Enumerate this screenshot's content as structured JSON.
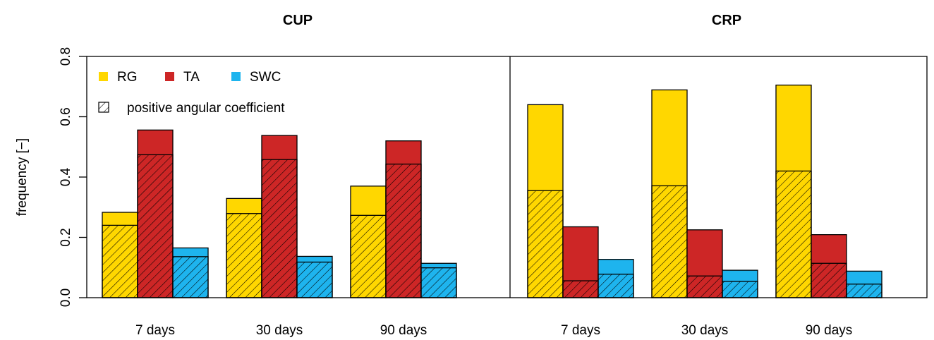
{
  "chart_data": {
    "type": "bar",
    "stacked": true,
    "ylabel": "frequency [−]",
    "ylim": [
      0,
      0.8
    ],
    "yticks": [
      "0.0",
      "0.2",
      "0.4",
      "0.6",
      "0.8"
    ],
    "legend": {
      "placement": "top-left",
      "entries": [
        {
          "label": "RG",
          "color": "#FFD700"
        },
        {
          "label": "TA",
          "color": "#CD2626"
        },
        {
          "label": "SWC",
          "color": "#1EB4EE"
        }
      ],
      "hatch_label": "positive angular coefficient"
    },
    "panels": [
      {
        "title": "CUP",
        "categories": [
          "7 days",
          "30 days",
          "90 days"
        ],
        "series": [
          {
            "name": "RG",
            "color": "#FFD700",
            "total": [
              0.283,
              0.329,
              0.37
            ],
            "positive": [
              0.24,
              0.279,
              0.273
            ]
          },
          {
            "name": "TA",
            "color": "#CD2626",
            "total": [
              0.556,
              0.538,
              0.52
            ],
            "positive": [
              0.474,
              0.458,
              0.443
            ]
          },
          {
            "name": "SWC",
            "color": "#1EB4EE",
            "total": [
              0.165,
              0.137,
              0.114
            ],
            "positive": [
              0.136,
              0.118,
              0.099
            ]
          }
        ]
      },
      {
        "title": "CRP",
        "categories": [
          "7 days",
          "30 days",
          "90 days"
        ],
        "series": [
          {
            "name": "RG",
            "color": "#FFD700",
            "total": [
              0.64,
              0.689,
              0.705
            ],
            "positive": [
              0.355,
              0.371,
              0.42
            ]
          },
          {
            "name": "TA",
            "color": "#CD2626",
            "total": [
              0.235,
              0.225,
              0.209
            ],
            "positive": [
              0.056,
              0.072,
              0.114
            ]
          },
          {
            "name": "SWC",
            "color": "#1EB4EE",
            "total": [
              0.127,
              0.091,
              0.088
            ],
            "positive": [
              0.078,
              0.054,
              0.045
            ]
          }
        ]
      }
    ]
  }
}
